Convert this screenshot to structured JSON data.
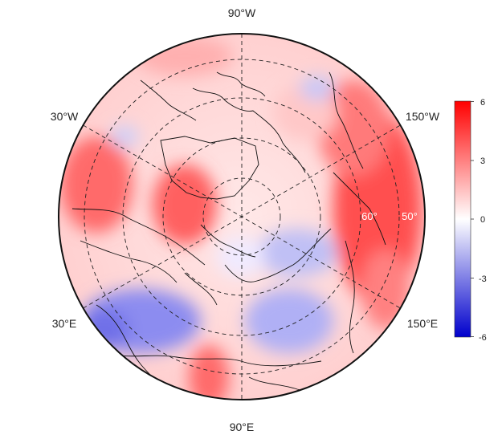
{
  "map": {
    "projection": "north-polar-stereographic",
    "longitude_labels": [
      {
        "id": "lon-90w",
        "text": "90°W"
      },
      {
        "id": "lon-30w",
        "text": "30°W"
      },
      {
        "id": "lon-150w",
        "text": "150°W"
      },
      {
        "id": "lon-30e",
        "text": "30°E"
      },
      {
        "id": "lon-150e",
        "text": "150°E"
      },
      {
        "id": "lon-90e",
        "text": "90°E"
      }
    ],
    "latitude_labels": [
      {
        "id": "lat-60",
        "text": "60°"
      },
      {
        "id": "lat-50",
        "text": "50°"
      }
    ],
    "gridlines": "dashed"
  },
  "colorbar": {
    "ticks": [
      "6",
      "3",
      "0",
      "-3",
      "-6"
    ],
    "min": -6,
    "max": 6,
    "colors": {
      "high": "#ff0000",
      "mid": "#ffffff",
      "low": "#0000cc"
    }
  }
}
